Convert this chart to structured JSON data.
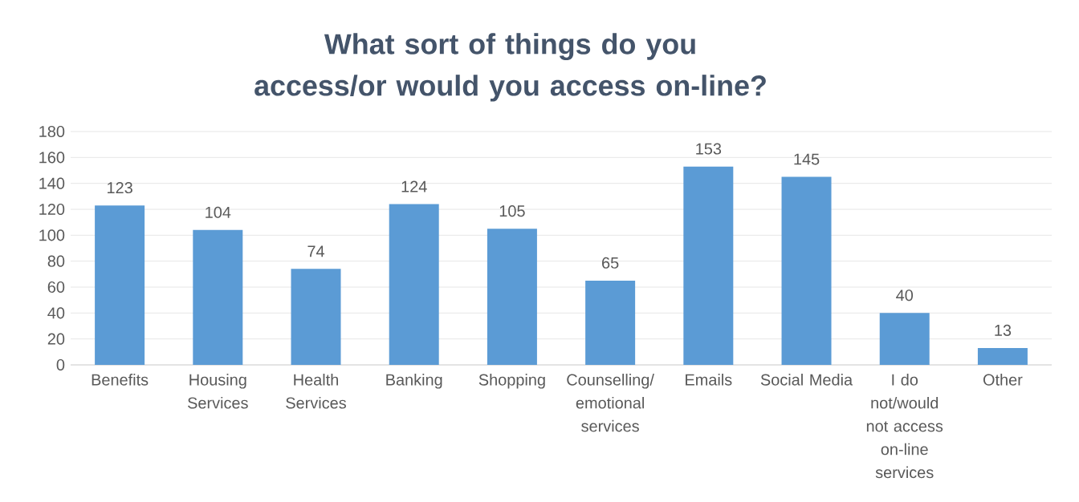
{
  "chart_data": {
    "type": "bar",
    "title": "What sort of things do you access/or would you access on-line?",
    "categories": [
      "Benefits",
      "Housing Services",
      "Health Services",
      "Banking",
      "Shopping",
      "Counselling/ emotional services",
      "Emails",
      "Social Media",
      "I do not/would not access on-line services",
      "Other"
    ],
    "values": [
      123,
      104,
      74,
      124,
      105,
      65,
      153,
      145,
      40,
      13
    ],
    "color": "#5b9bd5",
    "ylim": [
      0,
      180
    ],
    "yticks": [
      0,
      20,
      40,
      60,
      80,
      100,
      120,
      140,
      160,
      180
    ],
    "grid": "y",
    "data_labels": true
  }
}
